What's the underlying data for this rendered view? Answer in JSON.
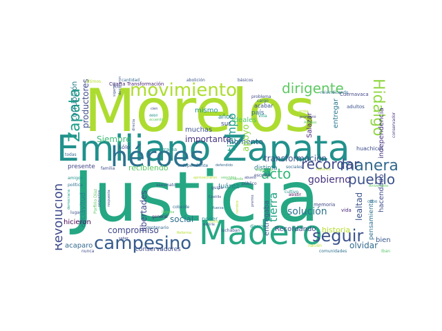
{
  "wordcloud": {
    "words": [
      {
        "text": "Justicia",
        "color": "#26a784"
      },
      {
        "text": "Morelos",
        "color": "#addc30"
      },
      {
        "text": "Emiliano Zapata",
        "color": "#21918c"
      },
      {
        "text": "Madero",
        "color": "#26a784"
      },
      {
        "text": "héroes",
        "color": "#2c728e"
      },
      {
        "text": "movimiento",
        "color": "#addc30"
      },
      {
        "text": "campesino",
        "color": "#365c8d"
      },
      {
        "text": "dirigente",
        "color": "#5ec962"
      },
      {
        "text": "Hidalgo",
        "color": "#90d743"
      },
      {
        "text": "seguir",
        "color": "#3b528b"
      },
      {
        "text": "Zapata",
        "color": "#1f9e89"
      },
      {
        "text": "Revolución",
        "color": "#3e4a89"
      },
      {
        "text": "manera",
        "color": "#31688e"
      },
      {
        "text": "recordar",
        "color": "#3e4a89"
      },
      {
        "text": "pueblo",
        "color": "#3b528b"
      },
      {
        "text": "acto",
        "color": "#35b779"
      },
      {
        "text": "tiempo",
        "color": "#1f9e89"
      },
      {
        "text": "tierra",
        "color": "#20a386"
      },
      {
        "text": "gobierno",
        "color": "#46337f"
      },
      {
        "text": "solución",
        "color": "#2c728e"
      },
      {
        "text": "historia",
        "color": "#b5de2b"
      },
      {
        "text": "compromiso",
        "color": "#404688"
      },
      {
        "text": "libertades",
        "color": "#3f4889"
      },
      {
        "text": "olvidar",
        "color": "#30698e"
      },
      {
        "text": "lealtad",
        "color": "#3b528b"
      },
      {
        "text": "social",
        "color": "#2d708e"
      },
      {
        "text": "transformación",
        "color": "#3b528b"
      },
      {
        "text": "productores",
        "color": "#3e4c8a"
      },
      {
        "text": "corrupción",
        "color": "#287c8e"
      },
      {
        "text": "importante",
        "color": "#46337f"
      },
      {
        "text": "Siempre",
        "color": "#3aba76"
      },
      {
        "text": "momento",
        "color": "#33628d"
      },
      {
        "text": "apoyo",
        "color": "#8fd744"
      },
      {
        "text": "Recordando",
        "color": "#3e4a89"
      },
      {
        "text": "bien",
        "color": "#38588c"
      },
      {
        "text": "entregar",
        "color": "#2a788e"
      },
      {
        "text": "independencia",
        "color": "#46337f"
      },
      {
        "text": "hacendado",
        "color": "#3e4989"
      },
      {
        "text": "ideales",
        "color": "#52c569"
      },
      {
        "text": "muchas",
        "color": "#3b528b"
      },
      {
        "text": "mismo",
        "color": "#21918c"
      },
      {
        "text": "Juárez",
        "color": "#26818e"
      },
      {
        "text": "hicieron",
        "color": "#440154"
      },
      {
        "text": "esclavitud",
        "color": "#26818e"
      },
      {
        "text": "presente",
        "color": "#414487"
      },
      {
        "text": "recibiendo",
        "color": "#5cc863"
      },
      {
        "text": "entregaba",
        "color": "#38588c"
      },
      {
        "text": "Salazar",
        "color": "#482475"
      },
      {
        "text": "pensamiento",
        "color": "#2d708e"
      },
      {
        "text": "conservadores",
        "color": "#3e4a89"
      },
      {
        "text": "acaparo",
        "color": "#31688e"
      },
      {
        "text": "años",
        "color": "#26828e"
      },
      {
        "text": "sur",
        "color": "#3e4a89"
      },
      {
        "text": "país",
        "color": "#31688e"
      },
      {
        "text": "distinta",
        "color": "#2a788e"
      },
      {
        "text": "sólo",
        "color": "#3e4989"
      },
      {
        "text": "Cuarta Transformación",
        "color": "#481f70"
      },
      {
        "text": "programa",
        "color": "#21918c"
      },
      {
        "text": "acabar",
        "color": "#3b528b"
      },
      {
        "text": "poder",
        "color": "#20928c"
      },
      {
        "text": "memoria",
        "color": "#3e4a89"
      },
      {
        "text": "huachicol",
        "color": "#3e4a89"
      },
      {
        "text": "adultos",
        "color": "#3b528b"
      },
      {
        "text": "Cuernavaca",
        "color": "#404688"
      },
      {
        "text": "reivindicando",
        "color": "#31688e"
      },
      {
        "text": "nación",
        "color": "#b8de29"
      },
      {
        "text": "comunidades",
        "color": "#2d708e"
      },
      {
        "text": "conservador",
        "color": "#453581"
      },
      {
        "text": "vida",
        "color": "#482576"
      },
      {
        "text": "cabo",
        "color": "#2c738e"
      },
      {
        "text": "Iban",
        "color": "#56c667"
      },
      {
        "text": "todas",
        "color": "#31688e"
      },
      {
        "text": "amigos",
        "color": "#21918c"
      },
      {
        "text": "política",
        "color": "#2d708e"
      },
      {
        "text": "lugar",
        "color": "#3b528b"
      },
      {
        "text": "democracia",
        "color": "#1fa088"
      },
      {
        "text": "nunca",
        "color": "#3e4a89"
      },
      {
        "text": "dinero",
        "color": "#20928c"
      },
      {
        "text": "luchaban",
        "color": "#3b528b"
      },
      {
        "text": "asistir",
        "color": "#440154"
      },
      {
        "text": "escribió",
        "color": "#3e4a89"
      },
      {
        "text": "centenario",
        "color": "#31688e"
      },
      {
        "text": "general",
        "color": "#482475"
      },
      {
        "text": "cobarde",
        "color": "#31688e"
      },
      {
        "text": "problema",
        "color": "#3e4a89"
      },
      {
        "text": "cargo",
        "color": "#31688e"
      },
      {
        "text": "Villa",
        "color": "#20a386"
      },
      {
        "text": "cultivo",
        "color": "#21918c"
      },
      {
        "text": "sociales",
        "color": "#31688e"
      },
      {
        "text": "especial",
        "color": "#5ec962"
      },
      {
        "text": "asesinato",
        "color": "#3b528b"
      },
      {
        "text": "respuesta",
        "color": "#3b528b"
      },
      {
        "text": "pequeños",
        "color": "#3b528b"
      },
      {
        "text": "familia",
        "color": "#3e4a89"
      },
      {
        "text": "gusto",
        "color": "#3e4a89"
      },
      {
        "text": "público",
        "color": "#3b528b"
      },
      {
        "text": "independiente",
        "color": "#31688e"
      },
      {
        "text": "cantidad",
        "color": "#31688e"
      },
      {
        "text": "abolición",
        "color": "#3b528b"
      },
      {
        "text": "básicos",
        "color": "#3e4a89"
      },
      {
        "text": "últimos",
        "color": "#b5de2b"
      },
      {
        "text": "sigamos",
        "color": "#3b528b"
      },
      {
        "text": "hijo",
        "color": "#3e4a89"
      },
      {
        "text": "denigraron",
        "color": "#3b528b"
      },
      {
        "text": "cien",
        "color": "#3e4a89"
      },
      {
        "text": "débil",
        "color": "#21918c"
      },
      {
        "text": "acuerdo",
        "color": "#5ec962"
      },
      {
        "text": "arriba",
        "color": "#b5de2b"
      },
      {
        "text": "promovió",
        "color": "#3e4a89"
      },
      {
        "text": "Amigas",
        "color": "#5ec962"
      },
      {
        "text": "directa",
        "color": "#3b528b"
      },
      {
        "text": "saber",
        "color": "#3e4a89"
      },
      {
        "text": "llegaba",
        "color": "#5ec962"
      },
      {
        "text": "Reforma",
        "color": "#b5de2b"
      },
      {
        "text": "murió",
        "color": "#b5de2b"
      },
      {
        "text": "decirle",
        "color": "#3b528b"
      },
      {
        "text": "Porfirio Díaz",
        "color": "#5ec962"
      },
      {
        "text": "histórica",
        "color": "#b5de2b"
      },
      {
        "text": "vencidos",
        "color": "#5ec962"
      },
      {
        "text": "aprovecharon",
        "color": "#b5de2b"
      },
      {
        "text": "defendido",
        "color": "#31688e"
      },
      {
        "text": "Luchando",
        "color": "#5ec962"
      },
      {
        "text": "abuelo",
        "color": "#3e4a89"
      },
      {
        "text": "premio",
        "color": "#3e4a89"
      },
      {
        "text": "fuerza",
        "color": "#31688e"
      },
      {
        "text": "hombre",
        "color": "#b5de2b"
      },
      {
        "text": "Aniversario",
        "color": "#5ec962"
      },
      {
        "text": "Castillo",
        "color": "#3b528b"
      }
    ]
  }
}
